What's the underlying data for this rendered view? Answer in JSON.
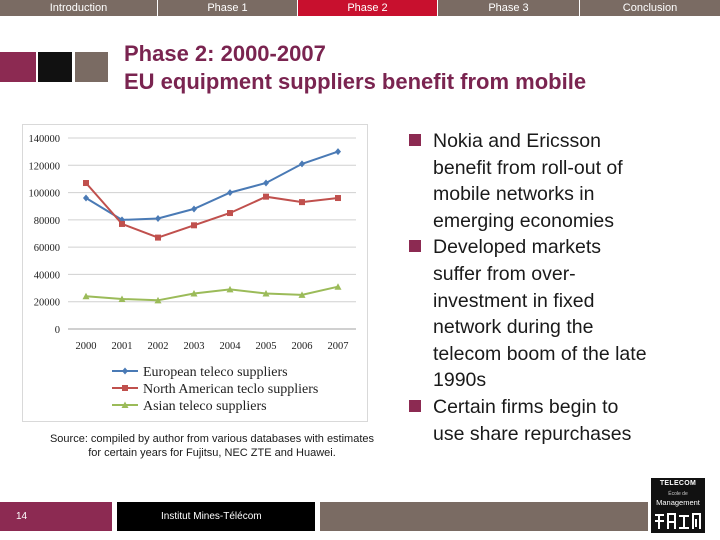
{
  "nav": {
    "tabs": [
      {
        "label": "Introduction",
        "active": false
      },
      {
        "label": "Phase 1",
        "active": false
      },
      {
        "label": "Phase 2",
        "active": true
      },
      {
        "label": "Phase 3",
        "active": false
      },
      {
        "label": "Conclusion",
        "active": false
      }
    ]
  },
  "title": {
    "line1": "Phase 2: 2000-2007",
    "line2": "EU equipment suppliers benefit from mobile"
  },
  "chart_data": {
    "type": "line",
    "title": "",
    "xlabel": "",
    "ylabel": "",
    "categories": [
      "2000",
      "2001",
      "2002",
      "2003",
      "2004",
      "2005",
      "2006",
      "2007"
    ],
    "ylim": [
      0,
      140000
    ],
    "yticks": [
      "0",
      "20000",
      "40000",
      "60000",
      "80000",
      "100000",
      "120000",
      "140000"
    ],
    "grid": true,
    "legend_position": "bottom",
    "series": [
      {
        "name": "European teleco suppliers",
        "color": "#4a7ab5",
        "marker": "diamond",
        "values": [
          96000,
          80000,
          81000,
          88000,
          100000,
          107000,
          121000,
          130000
        ]
      },
      {
        "name": "North American teclo suppliers",
        "color": "#c0504d",
        "marker": "square",
        "values": [
          107000,
          77000,
          67000,
          76000,
          85000,
          97000,
          93000,
          96000
        ]
      },
      {
        "name": "Asian teleco suppliers",
        "color": "#9bbb59",
        "marker": "triangle",
        "values": [
          24000,
          22000,
          21000,
          26000,
          29000,
          26000,
          25000,
          31000
        ]
      }
    ]
  },
  "source_note": {
    "line1": "Source: compiled by author from various databases with estimates",
    "line2": "for certain years for Fujitsu, NEC ZTE and Huawei."
  },
  "bullets": [
    [
      "Nokia and Ericsson",
      "benefit from roll-out of",
      "mobile networks in",
      "emerging economies"
    ],
    [
      "Developed markets",
      "suffer from over-",
      "investment in fixed",
      "network during the",
      "telecom boom of the late",
      "1990s"
    ],
    [
      "Certain firms begin to",
      "use share repurchases"
    ]
  ],
  "footer": {
    "page_number": "14",
    "institution": "Institut Mines-Télécom"
  },
  "logo": {
    "line1": "TELECOM",
    "line2": "École de",
    "line3": "Management"
  },
  "colors": {
    "brand_purple": "#8c2a52",
    "title_purple": "#7a2450",
    "nav_gray": "#7a6b63",
    "nav_active_red": "#c8102e"
  }
}
